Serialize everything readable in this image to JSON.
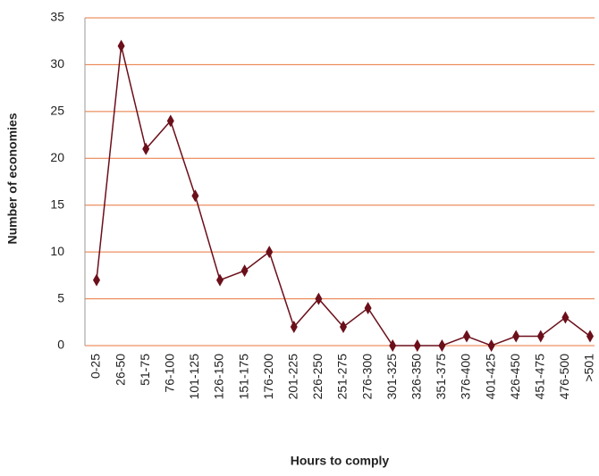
{
  "chart_data": {
    "type": "line",
    "x_label": "Hours to comply",
    "y_label": "Number of economies",
    "categories": [
      "0-25",
      "26-50",
      "51-75",
      "76-100",
      "101-125",
      "126-150",
      "151-175",
      "176-200",
      "201-225",
      "226-250",
      "251-275",
      "276-300",
      "301-325",
      "326-350",
      "351-375",
      "376-400",
      "401-425",
      "426-450",
      "451-475",
      "476-500",
      ">501"
    ],
    "values": [
      7,
      32,
      21,
      24,
      16,
      7,
      8,
      10,
      2,
      5,
      2,
      4,
      0,
      0,
      0,
      1,
      0,
      1,
      1,
      3,
      1
    ],
    "color": "#6b0f1a",
    "grid_color": "#e8743b",
    "ylim": [
      0,
      35
    ],
    "yticks": [
      0,
      5,
      10,
      15,
      20,
      25,
      30,
      35
    ],
    "grid": true
  }
}
